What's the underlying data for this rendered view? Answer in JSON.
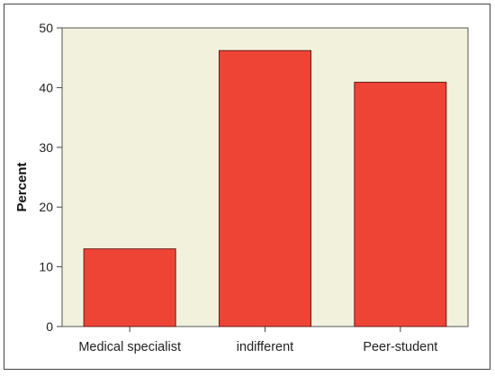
{
  "chart_data": {
    "type": "bar",
    "categories": [
      "Medical specialist",
      "indifferent",
      "Peer-student"
    ],
    "values": [
      13,
      46.2,
      40.9
    ],
    "ylabel": "Percent",
    "xlabel": "",
    "ylim": [
      0,
      50
    ],
    "yticks": [
      0,
      10,
      20,
      30,
      40,
      50
    ],
    "grid": false,
    "bar_color": "#EE4436",
    "bar_edge_color": "#6b1a14",
    "plot_background": "#F1F1DC"
  }
}
